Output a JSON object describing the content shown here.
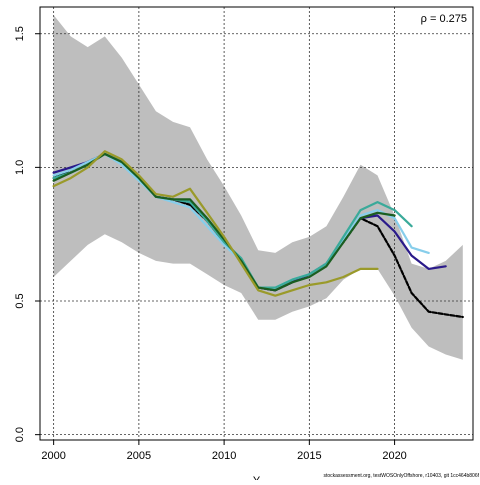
{
  "chart_data": {
    "type": "line",
    "title": "",
    "xlabel": "Y",
    "ylabel": "",
    "annotation": "ρ = 0.275",
    "footnote": "stockassessment.org, testWOSOnlyOffshore, r10403, git 1cc464b806f",
    "xlim": [
      1999.2,
      2024.6
    ],
    "ylim": [
      -0.02,
      1.6
    ],
    "x_ticks": [
      2000,
      2005,
      2010,
      2015,
      2020
    ],
    "y_ticks": [
      0.0,
      0.5,
      1.0,
      1.5
    ],
    "y_tick_labels": [
      "0.0",
      "0.5",
      "1.0",
      "1.5"
    ],
    "grid": true,
    "confidence_band": {
      "color": "#bebebe",
      "x": [
        2000,
        2001,
        2002,
        2003,
        2004,
        2005,
        2006,
        2007,
        2008,
        2009,
        2010,
        2011,
        2012,
        2013,
        2014,
        2015,
        2016,
        2017,
        2018,
        2019,
        2020,
        2021,
        2022,
        2023,
        2024
      ],
      "upper": [
        1.57,
        1.49,
        1.45,
        1.49,
        1.41,
        1.31,
        1.21,
        1.17,
        1.15,
        1.03,
        0.93,
        0.82,
        0.69,
        0.68,
        0.72,
        0.74,
        0.78,
        0.89,
        1.01,
        0.97,
        0.82,
        0.64,
        0.62,
        0.65,
        0.71
      ],
      "lower": [
        0.59,
        0.65,
        0.71,
        0.75,
        0.72,
        0.68,
        0.65,
        0.64,
        0.64,
        0.6,
        0.56,
        0.53,
        0.43,
        0.43,
        0.46,
        0.48,
        0.51,
        0.58,
        0.62,
        0.62,
        0.52,
        0.4,
        0.33,
        0.3,
        0.28
      ]
    },
    "series": [
      {
        "color": "#000000",
        "dashed": true,
        "x": [
          2000,
          2001,
          2002,
          2003,
          2004,
          2005,
          2006,
          2007,
          2008,
          2009,
          2010,
          2011,
          2012,
          2013,
          2014,
          2015,
          2016,
          2017,
          2018,
          2019,
          2020,
          2021,
          2022,
          2023,
          2024
        ],
        "values": [
          0.96,
          0.99,
          1.02,
          1.05,
          1.02,
          0.96,
          0.89,
          0.88,
          0.86,
          0.8,
          0.72,
          0.65,
          0.55,
          0.54,
          0.57,
          0.6,
          0.64,
          0.72,
          0.81,
          0.78,
          0.67,
          0.53,
          0.46,
          0.45,
          0.44
        ]
      },
      {
        "color": "#2a1a8a",
        "dashed": false,
        "x": [
          2000,
          2001,
          2002,
          2003,
          2004,
          2005,
          2006,
          2007,
          2008,
          2009,
          2010,
          2011,
          2012,
          2013,
          2014,
          2015,
          2016,
          2017,
          2018,
          2019,
          2020,
          2021,
          2022,
          2023
        ],
        "values": [
          0.98,
          1.0,
          1.02,
          1.05,
          1.02,
          0.96,
          0.89,
          0.88,
          0.87,
          0.8,
          0.72,
          0.65,
          0.55,
          0.54,
          0.57,
          0.6,
          0.64,
          0.73,
          0.81,
          0.82,
          0.76,
          0.67,
          0.62,
          0.63
        ]
      },
      {
        "color": "#87ceeb",
        "dashed": false,
        "x": [
          2000,
          2001,
          2002,
          2003,
          2004,
          2005,
          2006,
          2007,
          2008,
          2009,
          2010,
          2011,
          2012,
          2013,
          2014,
          2015,
          2016,
          2017,
          2018,
          2019,
          2020,
          2021,
          2022
        ],
        "values": [
          0.97,
          0.99,
          1.02,
          1.05,
          1.01,
          0.95,
          0.89,
          0.87,
          0.85,
          0.78,
          0.71,
          0.65,
          0.55,
          0.55,
          0.58,
          0.6,
          0.64,
          0.73,
          0.82,
          0.84,
          0.81,
          0.7,
          0.68
        ]
      },
      {
        "color": "#3aaa9a",
        "dashed": false,
        "x": [
          2000,
          2001,
          2002,
          2003,
          2004,
          2005,
          2006,
          2007,
          2008,
          2009,
          2010,
          2011,
          2012,
          2013,
          2014,
          2015,
          2016,
          2017,
          2018,
          2019,
          2020,
          2021
        ],
        "values": [
          0.96,
          0.98,
          1.01,
          1.05,
          1.02,
          0.96,
          0.89,
          0.88,
          0.87,
          0.8,
          0.72,
          0.66,
          0.55,
          0.55,
          0.58,
          0.6,
          0.64,
          0.74,
          0.84,
          0.87,
          0.84,
          0.78
        ]
      },
      {
        "color": "#1b5e20",
        "dashed": false,
        "x": [
          2000,
          2001,
          2002,
          2003,
          2004,
          2005,
          2006,
          2007,
          2008,
          2009,
          2010,
          2011,
          2012,
          2013,
          2014,
          2015,
          2016,
          2017,
          2018,
          2019,
          2020
        ],
        "values": [
          0.95,
          0.98,
          1.01,
          1.05,
          1.02,
          0.96,
          0.89,
          0.88,
          0.88,
          0.81,
          0.73,
          0.65,
          0.55,
          0.54,
          0.57,
          0.59,
          0.63,
          0.72,
          0.81,
          0.83,
          0.82
        ]
      },
      {
        "color": "#9a9a2a",
        "dashed": false,
        "x": [
          2000,
          2001,
          2002,
          2003,
          2004,
          2005,
          2006,
          2007,
          2008,
          2009,
          2010,
          2011,
          2012,
          2013,
          2014,
          2015,
          2016,
          2017,
          2018,
          2019
        ],
        "values": [
          0.93,
          0.96,
          1.0,
          1.06,
          1.03,
          0.97,
          0.9,
          0.89,
          0.92,
          0.83,
          0.74,
          0.64,
          0.54,
          0.52,
          0.54,
          0.56,
          0.57,
          0.59,
          0.62,
          0.62
        ]
      }
    ]
  }
}
